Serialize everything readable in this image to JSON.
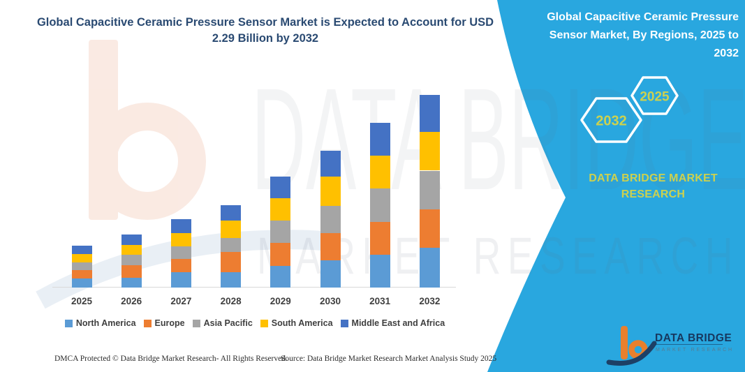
{
  "header": {
    "left_title": "Global Capacitive Ceramic Pressure Sensor Market is Expected to Account for USD 2.29 Billion by 2032",
    "right_title": "Global Capacitive Ceramic Pressure Sensor Market, By Regions, 2025 to 2032"
  },
  "side_panel": {
    "panel_color": "#29a7df",
    "accent_text_color": "#ccd14f",
    "hexagons": [
      {
        "label": "2032"
      },
      {
        "label": "2025"
      }
    ],
    "brand_text": "DATA BRIDGE MARKET RESEARCH"
  },
  "watermark": {
    "big_text": "DATA BRIDGE",
    "small_text": "MARKET RESEARCH"
  },
  "chart_data": {
    "type": "bar",
    "stacked": true,
    "title": "Global Capacitive Ceramic Pressure Sensor Market, By Regions, 2025 to 2032",
    "unit": "USD billion",
    "categories": [
      "2025",
      "2026",
      "2027",
      "2028",
      "2029",
      "2030",
      "2031",
      "2032"
    ],
    "series": [
      {
        "name": "North America",
        "color": "#5B9BD5",
        "values": [
          0.11,
          0.12,
          0.18,
          0.18,
          0.26,
          0.32,
          0.39,
          0.47
        ]
      },
      {
        "name": "Europe",
        "color": "#ED7D31",
        "values": [
          0.1,
          0.15,
          0.16,
          0.24,
          0.27,
          0.33,
          0.39,
          0.46
        ]
      },
      {
        "name": "Asia Pacific",
        "color": "#A5A5A5",
        "values": [
          0.09,
          0.12,
          0.15,
          0.17,
          0.27,
          0.32,
          0.4,
          0.46
        ]
      },
      {
        "name": "South America",
        "color": "#FFC000",
        "values": [
          0.1,
          0.12,
          0.16,
          0.21,
          0.26,
          0.35,
          0.39,
          0.46
        ]
      },
      {
        "name": "Middle East and Africa",
        "color": "#4472C4",
        "values": [
          0.1,
          0.12,
          0.16,
          0.18,
          0.26,
          0.31,
          0.39,
          0.44
        ]
      }
    ],
    "totals_by_year": [
      0.5,
      0.63,
      0.81,
      0.98,
      1.32,
      1.63,
      1.96,
      2.29
    ],
    "ylim": [
      0,
      2.4
    ],
    "grid": false,
    "legend_position": "bottom"
  },
  "logo": {
    "name": "DATA BRIDGE",
    "tagline": "MARKET RESEARCH"
  },
  "footer": {
    "dmca": "DMCA Protected © Data Bridge Market Research-  All Rights Reserved.",
    "source": "Source: Data Bridge Market Research  Market Analysis Study 2025"
  }
}
